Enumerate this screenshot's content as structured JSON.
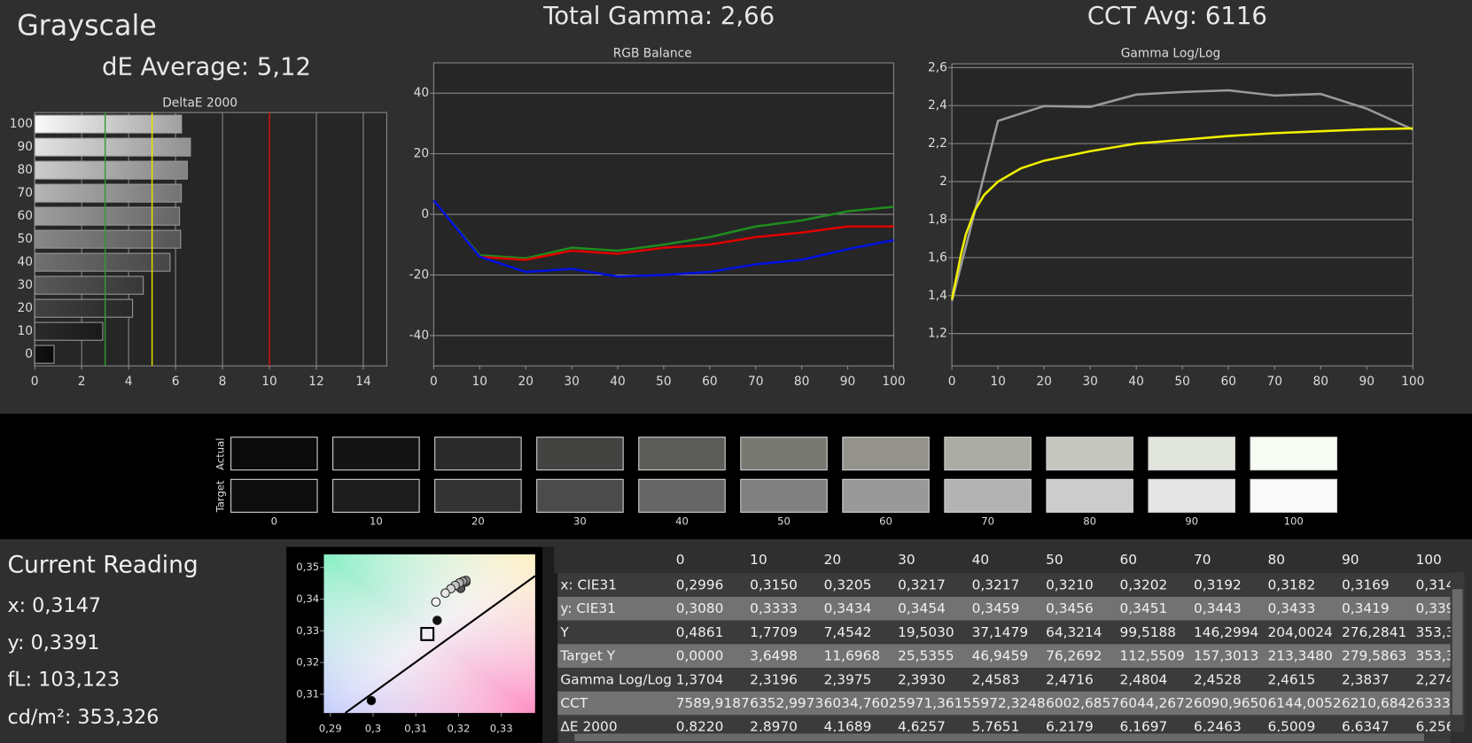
{
  "header": {
    "title": "Grayscale",
    "de_average": "dE Average: 5,12",
    "total_gamma": "Total Gamma: 2,66",
    "cct_avg": "CCT Avg: 6116"
  },
  "chart_data": [
    {
      "type": "hbar",
      "title": "DeltaE 2000",
      "categories": [
        "0",
        "10",
        "20",
        "30",
        "40",
        "50",
        "60",
        "70",
        "80",
        "90",
        "100"
      ],
      "values": [
        0.822,
        2.897,
        4.1689,
        4.6257,
        5.7651,
        6.2179,
        6.1697,
        6.2463,
        6.5009,
        6.6347,
        6.256
      ],
      "xlim": [
        0,
        15
      ],
      "xticks": [
        0,
        2,
        4,
        6,
        8,
        10,
        12,
        14
      ],
      "grid": "x",
      "reference_lines": [
        {
          "value": 3,
          "color": "#2e9e2e"
        },
        {
          "value": 5,
          "color": "#e6e600"
        },
        {
          "value": 10,
          "color": "#e01010"
        }
      ]
    },
    {
      "type": "line",
      "title": "RGB Balance",
      "xlim": [
        0,
        100
      ],
      "xticks": [
        0,
        10,
        20,
        30,
        40,
        50,
        60,
        70,
        80,
        90,
        100
      ],
      "ylim": [
        -50,
        50
      ],
      "yticks": [
        -40,
        -20,
        0,
        20,
        40
      ],
      "grid": "y",
      "series": [
        {
          "color": "#1e8c1e",
          "x": [
            0,
            10,
            20,
            30,
            40,
            50,
            60,
            70,
            80,
            90,
            100
          ],
          "values": [
            4.6,
            -13.5,
            -14.5,
            -11,
            -12,
            -10,
            -7.5,
            -4,
            -2,
            1,
            2.5
          ]
        },
        {
          "color": "#e00000",
          "x": [
            0,
            10,
            20,
            30,
            40,
            50,
            60,
            70,
            80,
            90,
            100
          ],
          "values": [
            4.6,
            -14,
            -15,
            -12,
            -13,
            -11,
            -10,
            -7.5,
            -6,
            -4,
            -4
          ]
        },
        {
          "color": "#0010e0",
          "x": [
            0,
            10,
            20,
            30,
            40,
            50,
            60,
            70,
            80,
            90,
            100
          ],
          "values": [
            4.6,
            -14,
            -19,
            -18,
            -20.5,
            -20,
            -19,
            -16.5,
            -15,
            -11.5,
            -8.5
          ]
        }
      ]
    },
    {
      "type": "line",
      "title": "Gamma Log/Log",
      "xlim": [
        0,
        100
      ],
      "xticks": [
        0,
        10,
        20,
        30,
        40,
        50,
        60,
        70,
        80,
        90,
        100
      ],
      "ylim": [
        1.03,
        2.62
      ],
      "yticks": [
        {
          "value": 1.2,
          "label": "1,2"
        },
        {
          "value": 1.4,
          "label": "1,4"
        },
        {
          "value": 1.6,
          "label": "1,6"
        },
        {
          "value": 1.8,
          "label": "1,8"
        },
        2,
        {
          "value": 2.2,
          "label": "2,2"
        },
        {
          "value": 2.4,
          "label": "2,4"
        },
        {
          "value": 2.6,
          "label": "2,6"
        }
      ],
      "grid": "y",
      "series": [
        {
          "color": "#9a9a9a",
          "x": [
            0,
            10,
            20,
            30,
            40,
            50,
            60,
            70,
            80,
            90,
            100
          ],
          "values": [
            1.3704,
            2.3196,
            2.3975,
            2.393,
            2.4583,
            2.4716,
            2.4804,
            2.4528,
            2.4615,
            2.3837,
            2.274
          ]
        },
        {
          "color": "#f0f000",
          "x": [
            0,
            1,
            2,
            3,
            5,
            7,
            10,
            15,
            20,
            30,
            40,
            50,
            60,
            70,
            80,
            90,
            100
          ],
          "values": [
            1.38,
            1.5,
            1.62,
            1.72,
            1.85,
            1.93,
            2.0,
            2.07,
            2.11,
            2.16,
            2.2,
            2.22,
            2.24,
            2.255,
            2.265,
            2.275,
            2.28
          ]
        }
      ]
    },
    {
      "type": "scatter",
      "xlim": [
        0.2885,
        0.3379
      ],
      "xticks": [
        {
          "value": 0.29,
          "label": "0,29"
        },
        {
          "value": 0.3,
          "label": "0,3"
        },
        {
          "value": 0.31,
          "label": "0,31"
        },
        {
          "value": 0.32,
          "label": "0,32"
        },
        {
          "value": 0.33,
          "label": "0,33"
        }
      ],
      "ylim": [
        0.3041,
        0.3541
      ],
      "yticks": [
        {
          "value": 0.31,
          "label": "0,31"
        },
        {
          "value": 0.32,
          "label": "0,32"
        },
        {
          "value": 0.33,
          "label": "0,33"
        },
        {
          "value": 0.34,
          "label": "0,34"
        },
        {
          "value": 0.35,
          "label": "0,35"
        }
      ],
      "series": [
        {
          "marker": "line",
          "color": "#000000",
          "x": [
            0.2935,
            0.3379
          ],
          "values": [
            0.3041,
            0.3473
          ]
        },
        {
          "marker": "square",
          "color": "#000000",
          "x": [
            0.3127
          ],
          "values": [
            0.329
          ]
        },
        {
          "marker": "circle",
          "x": [
            0.2996,
            0.315,
            0.3205,
            0.3217,
            0.3217,
            0.321,
            0.3202,
            0.3192,
            0.3182,
            0.3169,
            0.3147
          ],
          "values": [
            0.308,
            0.3333,
            0.3434,
            0.3454,
            0.3459,
            0.3456,
            0.3451,
            0.3443,
            0.3433,
            0.3419,
            0.3391
          ],
          "colors": [
            "#000000",
            "#111111",
            "#555555",
            "#777777",
            "#8c8c8c",
            "#a0a0a0",
            "#b4b4b4",
            "#c6c6c6",
            "#d6d6d6",
            "#e6e6e6",
            "#f4f4f4"
          ]
        }
      ]
    }
  ],
  "swatches": {
    "actual_label": "Actual",
    "target_label": "Target",
    "levels": [
      "0",
      "10",
      "20",
      "30",
      "40",
      "50",
      "60",
      "70",
      "80",
      "90",
      "100"
    ],
    "actual_colors": [
      "#0b0b0c",
      "#141414",
      "#2a2a2a",
      "#434341",
      "#5c5c59",
      "#787873",
      "#93938c",
      "#abaca4",
      "#c4c6bf",
      "#e1e5dd",
      "#f6fcf3"
    ],
    "target_colors": [
      "#0d0d0d",
      "#1c1c1c",
      "#333333",
      "#4b4b4b",
      "#666666",
      "#808080",
      "#999999",
      "#b3b3b3",
      "#cccccc",
      "#e6e6e6",
      "#fafafa"
    ]
  },
  "reading": {
    "title": "Current Reading",
    "lines": [
      "x: 0,3147",
      "y: 0,3391",
      "fL: 103,123",
      "cd/m²: 353,326"
    ]
  },
  "table": {
    "columns": [
      "0",
      "10",
      "20",
      "30",
      "40",
      "50",
      "60",
      "70",
      "80",
      "90",
      "100"
    ],
    "rows": [
      [
        "x: CIE31",
        "0,2996",
        "0,3150",
        "0,3205",
        "0,3217",
        "0,3217",
        "0,3210",
        "0,3202",
        "0,3192",
        "0,3182",
        "0,3169",
        "0,314"
      ],
      [
        "y: CIE31",
        "0,3080",
        "0,3333",
        "0,3434",
        "0,3454",
        "0,3459",
        "0,3456",
        "0,3451",
        "0,3443",
        "0,3433",
        "0,3419",
        "0,339"
      ],
      [
        "Y",
        "0,4861",
        "1,7709",
        "7,4542",
        "19,5030",
        "37,1479",
        "64,3214",
        "99,5188",
        "146,2994",
        "204,0024",
        "276,2841",
        "353,3"
      ],
      [
        "Target Y",
        "0,0000",
        "3,6498",
        "11,6968",
        "25,5355",
        "46,9459",
        "76,2692",
        "112,5509",
        "157,3013",
        "213,3480",
        "279,5863",
        "353,3"
      ],
      [
        "Gamma Log/Log",
        "1,3704",
        "2,3196",
        "2,3975",
        "2,3930",
        "2,4583",
        "2,4716",
        "2,4804",
        "2,4528",
        "2,4615",
        "2,3837",
        "2,274"
      ],
      [
        "CCT",
        "7589,9187",
        "6352,9973",
        "6034,7602",
        "5971,3615",
        "5972,3248",
        "6002,6857",
        "6044,2672",
        "6090,9650",
        "6144,0052",
        "6210,6842",
        "6333,"
      ],
      [
        "ΔE 2000",
        "0,8220",
        "2,8970",
        "4,1689",
        "4,6257",
        "5,7651",
        "6,2179",
        "6,1697",
        "6,2463",
        "6,5009",
        "6,6347",
        "6,256"
      ]
    ]
  }
}
